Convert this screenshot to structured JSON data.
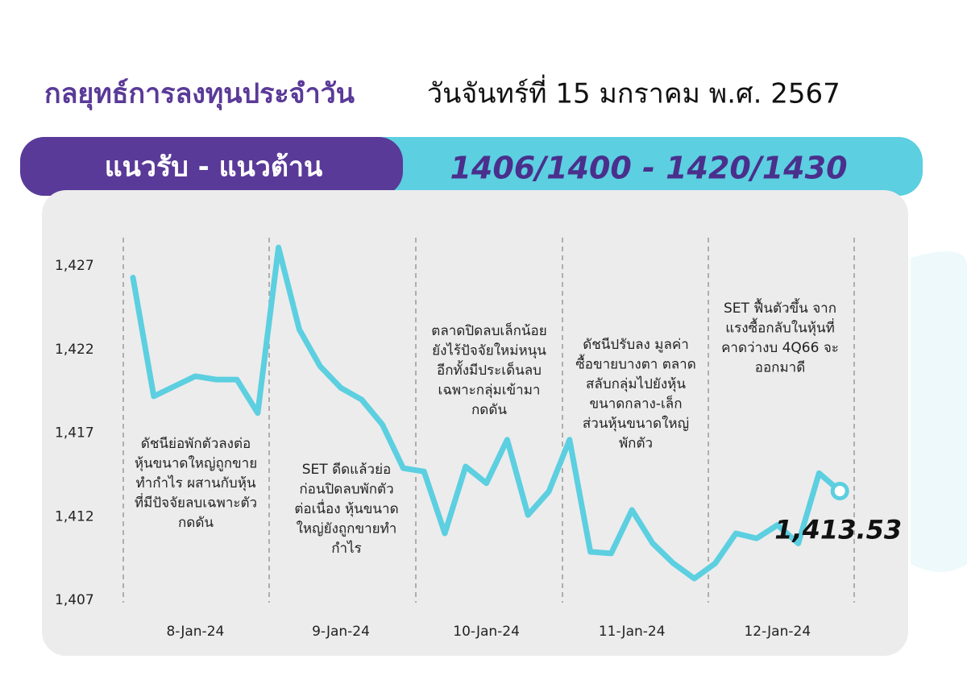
{
  "header": {
    "title": "กลยุทธ์การลงทุนประจำวัน",
    "date": "วันจันทร์ที่ 15 มกราคม พ.ศ. 2567"
  },
  "banner": {
    "label": "แนวรับ - แนวต้าน",
    "levels": "1406/1400 -  1420/1430"
  },
  "chart_data": {
    "type": "line",
    "categories": [
      null,
      null,
      null,
      "8-Jan-24",
      null,
      null,
      null,
      null,
      null,
      null,
      "9-Jan-24",
      null,
      null,
      null,
      null,
      null,
      null,
      "10-Jan-24",
      null,
      null,
      null,
      null,
      null,
      null,
      "11-Jan-24",
      null,
      null,
      null,
      null,
      null,
      null,
      "12-Jan-24",
      null,
      null,
      null
    ],
    "values": [
      1426.3,
      1419.2,
      1419.8,
      1420.4,
      1420.2,
      1420.2,
      1418.2,
      1428.1,
      1423.2,
      1421.0,
      1419.7,
      1419.0,
      1417.5,
      1414.9,
      1414.7,
      1411.0,
      1415.0,
      1414.0,
      1416.6,
      1412.1,
      1413.5,
      1416.6,
      1409.9,
      1409.8,
      1412.4,
      1410.4,
      1409.2,
      1408.3,
      1409.2,
      1411.0,
      1410.7,
      1411.5,
      1410.4,
      1414.6,
      1413.53
    ],
    "value_labels": [
      null,
      null,
      null,
      null,
      null,
      null,
      null,
      null,
      null,
      null,
      null,
      null,
      null,
      null,
      null,
      null,
      null,
      null,
      null,
      null,
      null,
      null,
      null,
      null,
      null,
      null,
      null,
      null,
      null,
      null,
      null,
      null,
      null,
      null,
      "1,413.53"
    ],
    "color": "#5ccfe0",
    "ylim": [
      1407,
      1429
    ],
    "yticks": [
      {
        "value": 1407,
        "label": "1,407"
      },
      {
        "value": 1412,
        "label": "1,412"
      },
      {
        "value": 1417,
        "label": "1,417"
      },
      {
        "value": 1422,
        "label": "1,422"
      },
      {
        "value": 1427,
        "label": "1,427"
      }
    ],
    "grid": false,
    "annotations": [
      [
        "ดัชนีย่อพักตัวลงต่อ",
        "หุ้นขนาดใหญ่ถูกขาย",
        "ทำกำไร ผสานกับหุ้น",
        "ที่มีปัจจัยลบเฉพาะตัว",
        "กดดัน"
      ],
      [
        "SET ดีดแล้วย่อ",
        "ก่อนปิดลบพักตัว",
        "ต่อเนื่อง หุ้นขนาด",
        "ใหญ่ยังถูกขายทำ",
        "กำไร"
      ],
      [
        "ตลาดปิดลบเล็กน้อย",
        "ยังไร้ปัจจัยใหม่หนุน",
        "อีกทั้งมีประเด็นลบ",
        "เฉพาะกลุ่มเข้ามา",
        "กดดัน"
      ],
      [
        "ดัชนีปรับลง มูลค่า",
        "ซื้อขายบางตา ตลาด",
        "สลับกลุ่มไปยังหุ้น",
        "ขนาดกลาง-เล็ก",
        "ส่วนหุ้นขนาดใหญ่",
        "พักตัว"
      ],
      [
        "SET ฟื้นตัวขึ้น จาก",
        "แรงซื้อกลับในหุ้นที่",
        "คาดว่างบ 4Q66 จะ",
        "ออกมาดี"
      ]
    ]
  }
}
